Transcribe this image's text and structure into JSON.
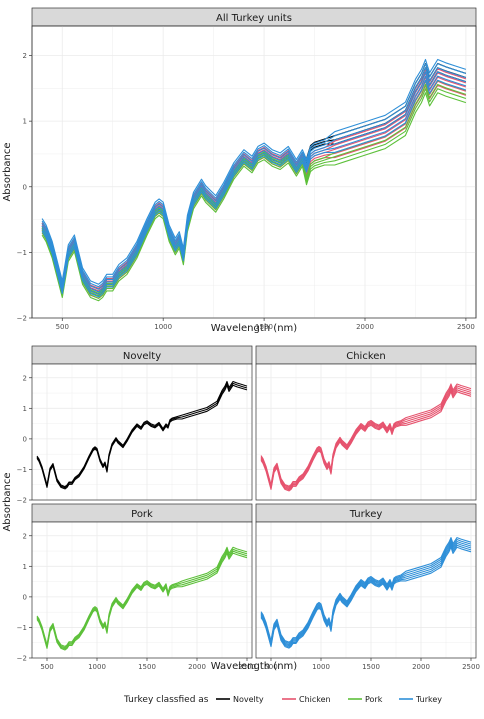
{
  "chart_data": [
    {
      "type": "line",
      "strip": "All Turkey units",
      "xlabel": "Wavelength (nm)",
      "ylabel": "Absorbance",
      "xticks": [
        500,
        1000,
        1500,
        2000,
        2500
      ],
      "yticks": [
        -2,
        -1,
        0,
        1,
        2
      ],
      "xlim": [
        350,
        2550
      ],
      "ylim": [
        -2.0,
        2.45
      ],
      "grid": true,
      "series_shape": {
        "x": [
          400,
          420,
          450,
          500,
          530,
          560,
          600,
          640,
          680,
          700,
          720,
          750,
          780,
          820,
          870,
          920,
          960,
          980,
          1000,
          1030,
          1060,
          1080,
          1100,
          1120,
          1150,
          1190,
          1210,
          1260,
          1300,
          1350,
          1400,
          1440,
          1470,
          1500,
          1540,
          1580,
          1620,
          1660,
          1690,
          1710,
          1730,
          1750,
          1800,
          1850,
          1900,
          2000,
          2100,
          2200,
          2250,
          2280,
          2300,
          2320,
          2360,
          2400,
          2450,
          2500
        ],
        "y": [
          -0.6,
          -0.7,
          -0.95,
          -1.55,
          -1.0,
          -0.85,
          -1.35,
          -1.55,
          -1.6,
          -1.55,
          -1.45,
          -1.45,
          -1.3,
          -1.2,
          -0.95,
          -0.6,
          -0.35,
          -0.3,
          -0.35,
          -0.7,
          -0.9,
          -0.8,
          -1.05,
          -0.55,
          -0.2,
          -0.0,
          -0.1,
          -0.25,
          -0.05,
          0.25,
          0.45,
          0.35,
          0.5,
          0.55,
          0.45,
          0.4,
          0.5,
          0.3,
          0.45,
          0.3,
          0.5,
          0.55,
          0.6,
          0.65,
          0.7,
          0.8,
          0.9,
          1.1,
          1.45,
          1.6,
          1.75,
          1.55,
          1.75,
          1.7,
          1.65,
          1.6
        ]
      },
      "series": [
        {
          "name": "Novelty",
          "color": "#000000",
          "count": 3
        },
        {
          "name": "Chicken",
          "color": "#E6536E",
          "count": 5
        },
        {
          "name": "Pork",
          "color": "#5DC03A",
          "count": 4
        },
        {
          "name": "Turkey",
          "color": "#2E8FD8",
          "count": 6
        }
      ]
    },
    {
      "type": "line",
      "strip": "Novelty",
      "series": [
        "Novelty"
      ],
      "xticks": [
        500,
        1000,
        1500,
        2000,
        2500
      ],
      "yticks": [
        -2,
        -1,
        0,
        1,
        2
      ]
    },
    {
      "type": "line",
      "strip": "Chicken",
      "series": [
        "Chicken"
      ],
      "xticks": [
        500,
        1000,
        1500,
        2000,
        2500
      ],
      "yticks": [
        -2,
        -1,
        0,
        1,
        2
      ]
    },
    {
      "type": "line",
      "strip": "Pork",
      "series": [
        "Pork"
      ],
      "xticks": [
        500,
        1000,
        1500,
        2000,
        2500
      ],
      "yticks": [
        -2,
        -1,
        0,
        1,
        2
      ]
    },
    {
      "type": "line",
      "strip": "Turkey",
      "series": [
        "Turkey"
      ],
      "xticks": [
        500,
        1000,
        1500,
        2000,
        2500
      ],
      "yticks": [
        -2,
        -1,
        0,
        1,
        2
      ]
    }
  ],
  "shared": {
    "xlabel": "Wavelength (nm)",
    "ylabel": "Absorbance"
  },
  "legend": {
    "title": "Turkey classfied as",
    "placement": "bottom",
    "items": [
      {
        "label": "Novelty",
        "color": "#000000"
      },
      {
        "label": "Chicken",
        "color": "#E6536E"
      },
      {
        "label": "Pork",
        "color": "#5DC03A"
      },
      {
        "label": "Turkey",
        "color": "#2E8FD8"
      }
    ]
  }
}
